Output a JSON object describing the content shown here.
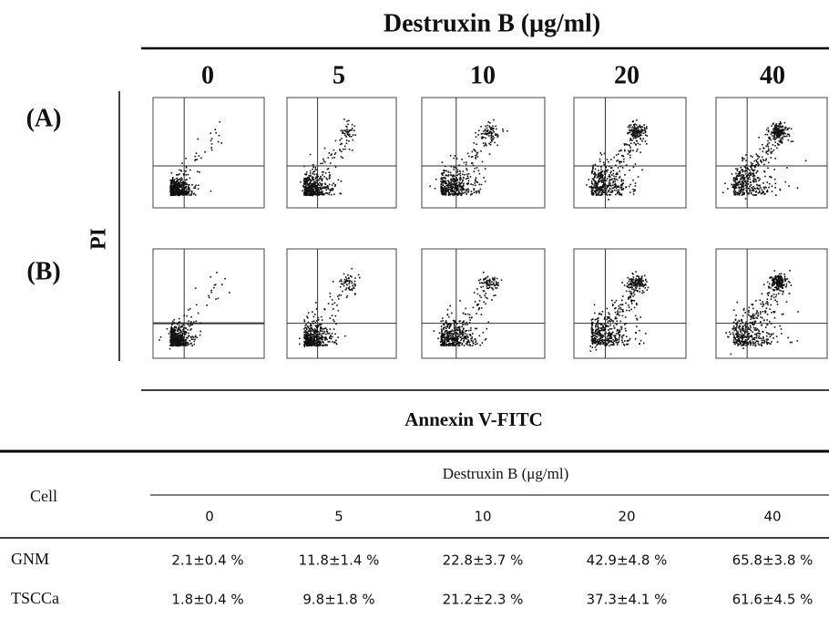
{
  "figure": {
    "title": "Destruxin B (μg/ml)",
    "doses": [
      "0",
      "5",
      "10",
      "20",
      "40"
    ],
    "row_labels": [
      "(A)",
      "(B)"
    ],
    "y_label": "PI",
    "x_label": "Annexin V-FITC"
  },
  "table": {
    "row_header": "Cell",
    "group_header": "Destruxin B (μg/ml)",
    "columns": [
      "0",
      "5",
      "10",
      "20",
      "40"
    ],
    "rows": [
      [
        "GNM",
        "2.1±0.4 %",
        "11.8±1.4 %",
        "22.8±3.7 %",
        "42.9±4.8 %",
        "65.8±3.8 %"
      ],
      [
        "TSCCa",
        "1.8±0.4 %",
        "9.8±1.8 %",
        "21.2±2.3 %",
        "37.3±4.1 %",
        "61.6±4.5 %"
      ]
    ]
  }
}
